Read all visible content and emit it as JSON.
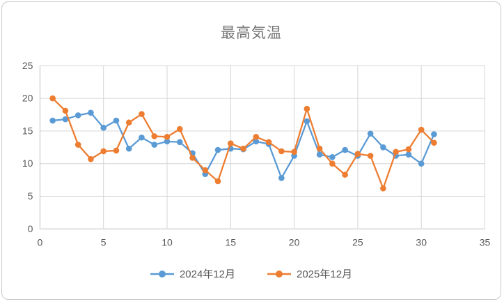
{
  "chart_title": "最高気温",
  "chart_data": {
    "type": "line",
    "title": "最高気温",
    "x": [
      1,
      2,
      3,
      4,
      5,
      6,
      7,
      8,
      9,
      10,
      11,
      12,
      13,
      14,
      15,
      16,
      17,
      18,
      19,
      20,
      21,
      22,
      23,
      24,
      25,
      26,
      27,
      28,
      29,
      30,
      31
    ],
    "series": [
      {
        "name": "2024年12月",
        "color": "#5b9bd5",
        "values": [
          16.6,
          16.8,
          17.4,
          17.8,
          15.5,
          16.6,
          12.3,
          14.0,
          12.9,
          13.4,
          13.3,
          11.6,
          8.4,
          12.1,
          12.3,
          12.2,
          13.4,
          13.0,
          7.8,
          11.2,
          16.5,
          11.4,
          11.0,
          12.1,
          11.2,
          14.6,
          12.5,
          11.2,
          11.4,
          10.0,
          14.5
        ]
      },
      {
        "name": "2025年12月",
        "color": "#ed7d31",
        "values": [
          20.0,
          18.1,
          12.9,
          10.7,
          11.9,
          12.0,
          16.3,
          17.6,
          14.2,
          14.1,
          15.3,
          10.9,
          9.0,
          7.3,
          13.1,
          12.3,
          14.1,
          13.3,
          11.9,
          11.8,
          18.4,
          12.3,
          10.0,
          8.3,
          11.5,
          11.2,
          6.2,
          11.8,
          12.2,
          15.2,
          13.2
        ]
      }
    ],
    "xlim": [
      0,
      35
    ],
    "ylim": [
      0,
      25
    ],
    "x_ticks": [
      0,
      5,
      10,
      15,
      20,
      25,
      30,
      35
    ],
    "y_ticks": [
      0,
      5,
      10,
      15,
      20,
      25
    ],
    "grid": "both",
    "legend_position": "bottom",
    "colors": {
      "gridline": "#d6d6d6",
      "axis_line": "#bfbfbf",
      "tick_label": "#595959",
      "title": "#757575"
    }
  }
}
